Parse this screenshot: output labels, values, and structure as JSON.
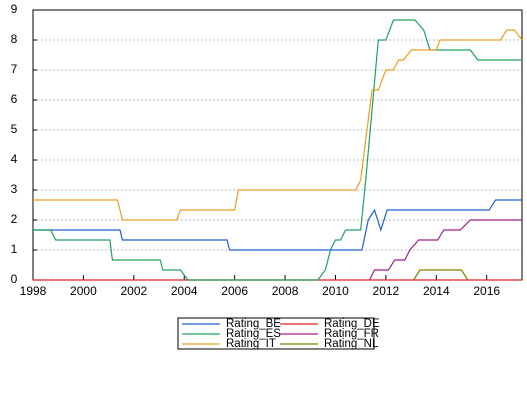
{
  "chart_data": {
    "type": "line",
    "xlim": [
      1998,
      2017.4
    ],
    "xticks": [
      1998,
      2000,
      2002,
      2004,
      2006,
      2008,
      2010,
      2012,
      2014,
      2016
    ],
    "ylim": [
      0,
      9
    ],
    "yticks": [
      0,
      1,
      2,
      3,
      4,
      5,
      6,
      7,
      8,
      9
    ],
    "grid": true,
    "series": [
      {
        "name": "Rating_BE",
        "color": "#1f5fd6",
        "x": [
          1998,
          2001.45,
          2001.55,
          2005.7,
          2005.8,
          2011.05,
          2011.3,
          2011.55,
          2011.8,
          2012.05,
          2016.1,
          2016.35,
          2017.4
        ],
        "values": [
          1.667,
          1.667,
          1.333,
          1.333,
          1.0,
          1.0,
          2.0,
          2.333,
          1.667,
          2.333,
          2.333,
          2.667,
          2.667
        ]
      },
      {
        "name": "Rating_DE",
        "color": "#e02020",
        "x": [
          1998,
          2017.4
        ],
        "values": [
          0,
          0
        ]
      },
      {
        "name": "Rating_ES",
        "color": "#20a060",
        "x": [
          1998,
          1998.7,
          1998.9,
          2001.05,
          2001.15,
          2003.05,
          2003.15,
          2003.85,
          2004.15,
          2009.3,
          2009.6,
          2009.8,
          2010.0,
          2010.2,
          2010.4,
          2011.0,
          2011.2,
          2011.7,
          2012.0,
          2012.3,
          2013.15,
          2013.5,
          2013.75,
          2015.35,
          2015.65,
          2017.4
        ],
        "values": [
          1.667,
          1.667,
          1.333,
          1.333,
          0.667,
          0.667,
          0.333,
          0.333,
          0,
          0,
          0.333,
          1.0,
          1.333,
          1.333,
          1.667,
          1.667,
          3.333,
          8.0,
          8.0,
          8.667,
          8.667,
          8.333,
          7.667,
          7.667,
          7.333,
          7.333
        ]
      },
      {
        "name": "Rating_FR",
        "color": "#a0208a",
        "x": [
          2011.35,
          2011.55,
          2012.1,
          2012.35,
          2012.75,
          2012.95,
          2013.3,
          2014.05,
          2014.3,
          2014.95,
          2015.35,
          2017.4
        ],
        "values": [
          0,
          0.333,
          0.333,
          0.667,
          0.667,
          1.0,
          1.333,
          1.333,
          1.667,
          1.667,
          2.0,
          2.0
        ]
      },
      {
        "name": "Rating_IT",
        "color": "#e8a020",
        "x": [
          1998,
          2001.35,
          2001.55,
          2003.7,
          2003.85,
          2006.0,
          2006.15,
          2010.8,
          2011.0,
          2011.45,
          2011.7,
          2012.0,
          2012.3,
          2012.5,
          2012.7,
          2013.0,
          2014.0,
          2014.15,
          2016.55,
          2016.8,
          2017.1,
          2017.4
        ],
        "values": [
          2.667,
          2.667,
          2.0,
          2.0,
          2.333,
          2.333,
          3.0,
          3.0,
          3.333,
          6.333,
          6.333,
          7.0,
          7.0,
          7.333,
          7.333,
          7.667,
          7.667,
          8.0,
          8.0,
          8.333,
          8.333,
          8.0
        ]
      },
      {
        "name": "Rating_NL",
        "color": "#808000",
        "x": [
          2013.1,
          2013.35,
          2015.0,
          2015.25
        ],
        "values": [
          0,
          0.333,
          0.333,
          0
        ]
      }
    ]
  }
}
